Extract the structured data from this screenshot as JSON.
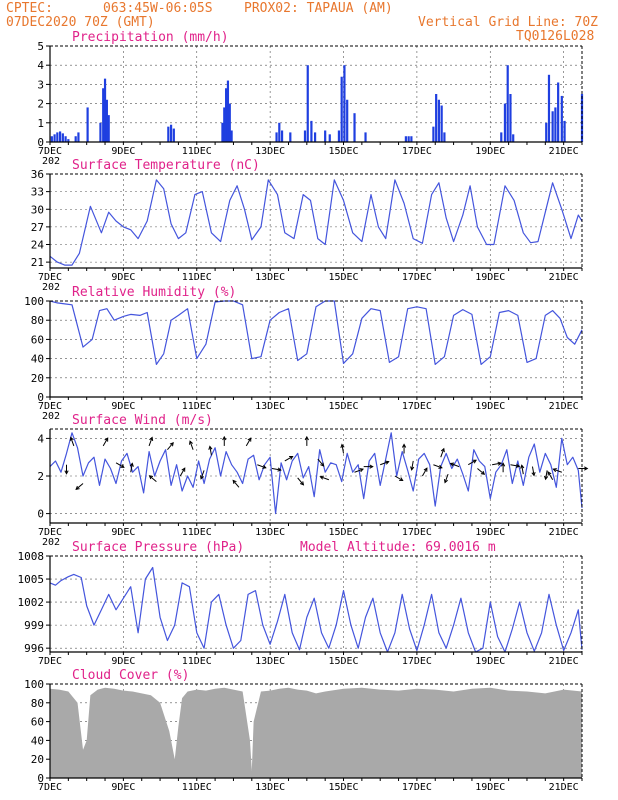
{
  "header": {
    "source": "CPTEC:",
    "location": "063:45W-06:05S",
    "station": "PROX02: TAPAUA (AM)",
    "run": "07DEC2020 70Z (GMT)",
    "grid_note": "Vertical Grid Line: 70Z",
    "code": "TQ0126L028"
  },
  "chart_data": [
    {
      "id": "precip",
      "type": "bar",
      "title": "Precipitation (mm/h)",
      "xlabel": "",
      "ylabel": "",
      "ylim": [
        0,
        5
      ],
      "yticks": [
        0,
        1,
        2,
        3,
        4,
        5
      ],
      "x_tick_labels": [
        "7DEC",
        "9DEC",
        "11DEC",
        "13DEC",
        "15DEC",
        "17DEC",
        "19DEC",
        "21DEC"
      ],
      "x_axis_sub": "202",
      "color": "#1f3fe0",
      "grid": true,
      "bars": [
        [
          0.1,
          0.3
        ],
        [
          0.25,
          0.4
        ],
        [
          0.4,
          0.5
        ],
        [
          0.55,
          0.55
        ],
        [
          0.7,
          0.45
        ],
        [
          0.85,
          0.3
        ],
        [
          1.0,
          0.15
        ],
        [
          1.4,
          0.3
        ],
        [
          1.55,
          0.5
        ],
        [
          2.05,
          1.8
        ],
        [
          2.75,
          1.0
        ],
        [
          2.9,
          2.8
        ],
        [
          3.0,
          3.3
        ],
        [
          3.1,
          2.2
        ],
        [
          3.2,
          1.4
        ],
        [
          6.45,
          0.8
        ],
        [
          6.6,
          0.9
        ],
        [
          6.75,
          0.7
        ],
        [
          9.4,
          1.0
        ],
        [
          9.5,
          1.8
        ],
        [
          9.6,
          2.8
        ],
        [
          9.7,
          3.2
        ],
        [
          9.8,
          2.0
        ],
        [
          9.9,
          0.6
        ],
        [
          12.35,
          0.5
        ],
        [
          12.5,
          1.0
        ],
        [
          12.65,
          0.6
        ],
        [
          13.1,
          0.5
        ],
        [
          13.9,
          0.6
        ],
        [
          14.05,
          4.0
        ],
        [
          14.25,
          1.1
        ],
        [
          14.45,
          0.5
        ],
        [
          15.0,
          0.6
        ],
        [
          15.25,
          0.4
        ],
        [
          15.75,
          0.6
        ],
        [
          15.9,
          3.4
        ],
        [
          16.05,
          4.0
        ],
        [
          16.2,
          2.2
        ],
        [
          16.6,
          1.5
        ],
        [
          17.2,
          0.5
        ],
        [
          19.4,
          0.3
        ],
        [
          19.55,
          0.3
        ],
        [
          19.7,
          0.3
        ],
        [
          20.9,
          0.8
        ],
        [
          21.05,
          2.5
        ],
        [
          21.2,
          2.2
        ],
        [
          21.35,
          1.9
        ],
        [
          21.5,
          0.5
        ],
        [
          24.6,
          0.5
        ],
        [
          24.8,
          2.0
        ],
        [
          24.95,
          4.0
        ],
        [
          25.1,
          2.5
        ],
        [
          25.25,
          0.4
        ],
        [
          27.05,
          1.0
        ],
        [
          27.2,
          3.5
        ],
        [
          27.4,
          1.6
        ],
        [
          27.55,
          1.8
        ],
        [
          27.7,
          3.1
        ],
        [
          27.9,
          2.4
        ],
        [
          28.05,
          1.1
        ],
        [
          29.0,
          2.5
        ]
      ]
    },
    {
      "id": "temp",
      "type": "line",
      "title": "Surface Temperature (nC)",
      "xlabel": "",
      "ylabel": "",
      "ylim": [
        20,
        36
      ],
      "yticks": [
        21,
        24,
        27,
        30,
        33,
        36
      ],
      "x_tick_labels": [
        "7DEC",
        "9DEC",
        "11DEC",
        "13DEC",
        "15DEC",
        "17DEC",
        "19DEC",
        "21DEC"
      ],
      "x_axis_sub": "202",
      "color": "#4455dd",
      "grid": true,
      "x": [
        0,
        0.4,
        0.8,
        1.2,
        1.6,
        2.2,
        2.8,
        3.2,
        3.6,
        4.0,
        4.4,
        4.8,
        5.3,
        5.8,
        6.2,
        6.6,
        7.0,
        7.4,
        7.9,
        8.3,
        8.8,
        9.3,
        9.8,
        10.2,
        10.6,
        11.0,
        11.5,
        11.9,
        12.4,
        12.8,
        13.3,
        13.8,
        14.2,
        14.6,
        15.0,
        15.5,
        16.0,
        16.5,
        17.0,
        17.5,
        17.9,
        18.3,
        18.8,
        19.3,
        19.8,
        20.3,
        20.8,
        21.2,
        21.6,
        22.0,
        22.5,
        22.9,
        23.3,
        23.8,
        24.2,
        24.8,
        25.3,
        25.8,
        26.2,
        26.6,
        27.0,
        27.4,
        27.9,
        28.4,
        28.8,
        29.0
      ],
      "y": [
        22,
        21,
        20.5,
        20.5,
        22.5,
        30.5,
        26,
        29.5,
        28,
        27,
        26.5,
        25,
        28,
        35,
        33.5,
        27.5,
        25,
        26,
        32.5,
        33,
        26,
        24.5,
        31.5,
        34,
        30,
        24.8,
        27,
        35,
        32.5,
        26,
        25,
        32.5,
        31.5,
        25,
        24,
        35,
        31.5,
        26,
        24.5,
        32.5,
        27,
        25,
        35,
        31,
        25,
        24.2,
        32.5,
        34.5,
        28.5,
        24.5,
        29,
        34,
        27,
        24,
        24,
        34,
        31.5,
        26,
        24.3,
        24.5,
        29.5,
        34.5,
        30,
        25,
        29,
        28
      ]
    },
    {
      "id": "rh",
      "type": "line",
      "title": "Relative Humidity (%)",
      "xlabel": "",
      "ylabel": "",
      "ylim": [
        0,
        100
      ],
      "yticks": [
        0,
        20,
        40,
        60,
        80,
        100
      ],
      "x_tick_labels": [
        "7DEC",
        "9DEC",
        "11DEC",
        "13DEC",
        "15DEC",
        "17DEC",
        "19DEC",
        "21DEC"
      ],
      "x_axis_sub": "202",
      "color": "#4455dd",
      "grid": true,
      "x": [
        0,
        0.4,
        0.8,
        1.2,
        1.8,
        2.3,
        2.7,
        3.1,
        3.5,
        4.0,
        4.4,
        4.9,
        5.3,
        5.8,
        6.2,
        6.6,
        7.0,
        7.5,
        8.0,
        8.5,
        9.0,
        9.5,
        10.0,
        10.5,
        11.0,
        11.5,
        12.0,
        12.5,
        13.0,
        13.5,
        14.0,
        14.5,
        15.0,
        15.5,
        16.0,
        16.5,
        17.0,
        17.5,
        18.0,
        18.5,
        19.0,
        19.5,
        20.0,
        20.5,
        21.0,
        21.5,
        22.0,
        22.5,
        23.0,
        23.5,
        24.0,
        24.5,
        25.0,
        25.5,
        26.0,
        26.5,
        27.0,
        27.4,
        27.8,
        28.2,
        28.6,
        29.0
      ],
      "y": [
        100,
        98,
        97,
        96,
        52,
        60,
        90,
        92,
        80,
        84,
        86,
        85,
        88,
        34,
        45,
        80,
        85,
        92,
        40,
        55,
        99,
        100,
        100,
        96,
        40,
        42,
        80,
        88,
        92,
        38,
        45,
        94,
        100,
        100,
        35,
        45,
        82,
        92,
        90,
        36,
        42,
        92,
        94,
        92,
        34,
        42,
        85,
        91,
        86,
        34,
        42,
        88,
        90,
        85,
        36,
        40,
        85,
        90,
        82,
        62,
        55,
        70
      ]
    },
    {
      "id": "wind",
      "type": "line",
      "title": "Surface Wind (m/s)",
      "xlabel": "",
      "ylabel": "",
      "ylim": [
        -0.5,
        4.5
      ],
      "yticks": [
        0,
        2,
        4
      ],
      "x_tick_labels": [
        "7DEC",
        "9DEC",
        "11DEC",
        "13DEC",
        "15DEC",
        "17DEC",
        "19DEC",
        "21DEC"
      ],
      "x_axis_sub": "202",
      "color": "#4455dd",
      "grid": true,
      "arrow_color": "#000000",
      "x": [
        0,
        0.3,
        0.6,
        0.9,
        1.2,
        1.5,
        1.8,
        2.1,
        2.4,
        2.7,
        3.0,
        3.3,
        3.6,
        3.9,
        4.2,
        4.5,
        4.8,
        5.1,
        5.4,
        5.7,
        6.0,
        6.3,
        6.6,
        6.9,
        7.2,
        7.5,
        7.8,
        8.1,
        8.4,
        8.7,
        9.0,
        9.3,
        9.6,
        9.9,
        10.2,
        10.5,
        10.8,
        11.1,
        11.4,
        11.7,
        12.0,
        12.3,
        12.6,
        12.9,
        13.2,
        13.5,
        13.8,
        14.1,
        14.4,
        14.7,
        15.0,
        15.3,
        15.6,
        15.9,
        16.2,
        16.5,
        16.8,
        17.1,
        17.4,
        17.7,
        18.0,
        18.3,
        18.6,
        18.9,
        19.2,
        19.5,
        19.8,
        20.1,
        20.4,
        20.7,
        21.0,
        21.3,
        21.6,
        21.9,
        22.2,
        22.5,
        22.8,
        23.1,
        23.4,
        23.7,
        24.0,
        24.3,
        24.6,
        24.9,
        25.2,
        25.5,
        25.8,
        26.1,
        26.4,
        26.7,
        27.0,
        27.3,
        27.6,
        27.9,
        28.2,
        28.5,
        28.8,
        29.0
      ],
      "y": [
        2.5,
        2.8,
        2.2,
        3.2,
        4.3,
        3.5,
        2.0,
        2.7,
        3.0,
        1.5,
        2.9,
        2.4,
        1.6,
        2.8,
        3.2,
        2.2,
        2.5,
        1.1,
        3.3,
        2.0,
        2.8,
        3.4,
        1.5,
        2.6,
        1.2,
        2.0,
        1.4,
        2.8,
        1.6,
        2.9,
        3.5,
        2.0,
        3.3,
        2.6,
        2.2,
        1.6,
        2.9,
        3.1,
        1.8,
        2.6,
        3.0,
        0.0,
        2.7,
        1.8,
        2.8,
        3.2,
        1.9,
        2.5,
        0.9,
        3.4,
        2.2,
        2.7,
        2.6,
        1.7,
        3.2,
        2.2,
        2.6,
        0.8,
        2.8,
        3.2,
        1.5,
        2.9,
        4.3,
        2.0,
        3.3,
        2.3,
        1.2,
        2.9,
        3.2,
        2.6,
        0.4,
        2.5,
        3.2,
        2.4,
        2.9,
        2.1,
        1.2,
        3.4,
        2.8,
        2.5,
        0.8,
        2.2,
        2.6,
        3.4,
        1.6,
        2.8,
        1.5,
        3.0,
        3.7,
        2.2,
        3.2,
        2.6,
        1.4,
        4.0,
        2.6,
        3.0,
        2.3,
        0.3
      ],
      "arrows": [
        [
          0.9,
          2.6,
          90
        ],
        [
          1.3,
          3.6,
          -110
        ],
        [
          1.8,
          1.6,
          140
        ],
        [
          2.9,
          3.6,
          -60
        ],
        [
          3.6,
          2.7,
          30
        ],
        [
          4.4,
          2.2,
          -80
        ],
        [
          5.4,
          3.6,
          -70
        ],
        [
          5.8,
          1.7,
          -140
        ],
        [
          6.4,
          3.4,
          -50
        ],
        [
          7.1,
          2.0,
          -60
        ],
        [
          7.8,
          3.4,
          -110
        ],
        [
          8.4,
          2.3,
          110
        ],
        [
          8.8,
          3.1,
          -100
        ],
        [
          9.5,
          3.6,
          -90
        ],
        [
          10.3,
          1.4,
          -130
        ],
        [
          10.7,
          3.6,
          -60
        ],
        [
          11.3,
          2.6,
          20
        ],
        [
          12.1,
          2.4,
          10
        ],
        [
          12.8,
          2.8,
          -30
        ],
        [
          13.5,
          1.9,
          50
        ],
        [
          14.0,
          3.6,
          -90
        ],
        [
          14.6,
          2.9,
          50
        ],
        [
          15.2,
          1.8,
          -160
        ],
        [
          16.0,
          3.2,
          -100
        ],
        [
          16.6,
          2.2,
          -20
        ],
        [
          17.1,
          2.5,
          0
        ],
        [
          18.0,
          2.6,
          -20
        ],
        [
          18.8,
          2.0,
          30
        ],
        [
          19.3,
          3.2,
          -90
        ],
        [
          19.8,
          2.8,
          100
        ],
        [
          20.3,
          2.0,
          -60
        ],
        [
          20.9,
          2.6,
          20
        ],
        [
          21.3,
          3.0,
          -70
        ],
        [
          21.7,
          2.1,
          110
        ],
        [
          22.3,
          2.5,
          -160
        ],
        [
          22.8,
          2.6,
          -30
        ],
        [
          23.3,
          2.4,
          40
        ],
        [
          24.1,
          2.6,
          -10
        ],
        [
          24.7,
          2.2,
          -90
        ],
        [
          25.1,
          2.6,
          10
        ],
        [
          25.8,
          2.1,
          -100
        ],
        [
          26.3,
          2.5,
          80
        ],
        [
          27.1,
          2.3,
          100
        ],
        [
          27.4,
          1.8,
          -120
        ],
        [
          27.9,
          2.2,
          -160
        ],
        [
          28.8,
          2.4,
          0
        ]
      ]
    },
    {
      "id": "pressure",
      "type": "line",
      "title": "Surface Pressure (hPa)",
      "subtitle": "Model Altitude: 69.0016 m",
      "xlabel": "",
      "ylabel": "",
      "ylim": [
        995.5,
        1008
      ],
      "yticks": [
        996,
        999,
        1002,
        1005,
        1008
      ],
      "x_tick_labels": [
        "7DEC",
        "9DEC",
        "11DEC",
        "13DEC",
        "15DEC",
        "17DEC",
        "19DEC",
        "21DEC"
      ],
      "x_axis_sub": "",
      "color": "#4455dd",
      "grid": true,
      "x": [
        0,
        0.3,
        0.6,
        1.0,
        1.3,
        1.7,
        2.0,
        2.4,
        2.8,
        3.2,
        3.6,
        4.0,
        4.4,
        4.8,
        5.2,
        5.6,
        6.0,
        6.4,
        6.8,
        7.2,
        7.6,
        8.0,
        8.4,
        8.8,
        9.2,
        9.6,
        10.0,
        10.4,
        10.8,
        11.2,
        11.6,
        12.0,
        12.4,
        12.8,
        13.2,
        13.6,
        14.0,
        14.4,
        14.8,
        15.2,
        15.6,
        16.0,
        16.4,
        16.8,
        17.2,
        17.6,
        18.0,
        18.4,
        18.8,
        19.2,
        19.6,
        20.0,
        20.4,
        20.8,
        21.2,
        21.6,
        22.0,
        22.4,
        22.8,
        23.2,
        23.6,
        24.0,
        24.4,
        24.8,
        25.2,
        25.6,
        26.0,
        26.4,
        26.8,
        27.2,
        27.6,
        28.0,
        28.4,
        28.8,
        29.0
      ],
      "y": [
        1004.5,
        1004.2,
        1004.8,
        1005.3,
        1005.6,
        1005.2,
        1001.5,
        999,
        1001,
        1003,
        1001,
        1002.5,
        1004,
        998,
        1005,
        1006.5,
        1000,
        997,
        999,
        1004.5,
        1004,
        998,
        996,
        1002,
        1003,
        999,
        996,
        997,
        1003,
        1003.5,
        999,
        996.5,
        999.5,
        1003,
        998,
        995.8,
        1000,
        1002.5,
        998,
        996,
        999,
        1003.5,
        999,
        996,
        1000,
        1002.5,
        998,
        995.5,
        998,
        1003,
        998.5,
        995.7,
        999,
        1003,
        998,
        996,
        999,
        1002.5,
        998,
        995.5,
        996,
        1002,
        997.5,
        995,
        998.5,
        1002,
        998,
        995.6,
        998,
        1003,
        999,
        995.7,
        998,
        1001,
        995.8
      ]
    },
    {
      "id": "cloud",
      "type": "area",
      "title": "Cloud Cover (%)",
      "xlabel": "",
      "ylabel": "",
      "ylim": [
        0,
        100
      ],
      "yticks": [
        0,
        20,
        40,
        60,
        80,
        100
      ],
      "x_tick_labels": [
        "7DEC",
        "9DEC",
        "11DEC",
        "13DEC",
        "15DEC",
        "17DEC",
        "19DEC",
        "21DEC"
      ],
      "x_axis_sub": "",
      "color": "#a9a9a9",
      "grid": true,
      "x": [
        0,
        0.5,
        1.0,
        1.5,
        1.8,
        2.0,
        2.2,
        2.6,
        3.0,
        3.5,
        4.0,
        4.5,
        5.0,
        5.5,
        6.0,
        6.5,
        6.8,
        7.0,
        7.2,
        7.5,
        8.0,
        8.5,
        9.0,
        9.5,
        10.0,
        10.5,
        10.9,
        11.0,
        11.1,
        11.5,
        12.0,
        12.5,
        13.0,
        13.5,
        14.0,
        14.5,
        15.0,
        16.0,
        17.0,
        18.0,
        19.0,
        20.0,
        21.0,
        22.0,
        23.0,
        24.0,
        25.0,
        26.0,
        27.0,
        28.0,
        29.0
      ],
      "y": [
        95,
        94,
        92,
        80,
        30,
        40,
        88,
        94,
        96,
        95,
        93,
        92,
        90,
        88,
        80,
        50,
        20,
        55,
        85,
        92,
        94,
        93,
        95,
        96,
        94,
        92,
        40,
        8,
        60,
        92,
        93,
        95,
        96,
        94,
        93,
        90,
        92,
        95,
        96,
        94,
        93,
        95,
        94,
        92,
        95,
        96,
        93,
        92,
        90,
        94,
        92
      ]
    }
  ]
}
